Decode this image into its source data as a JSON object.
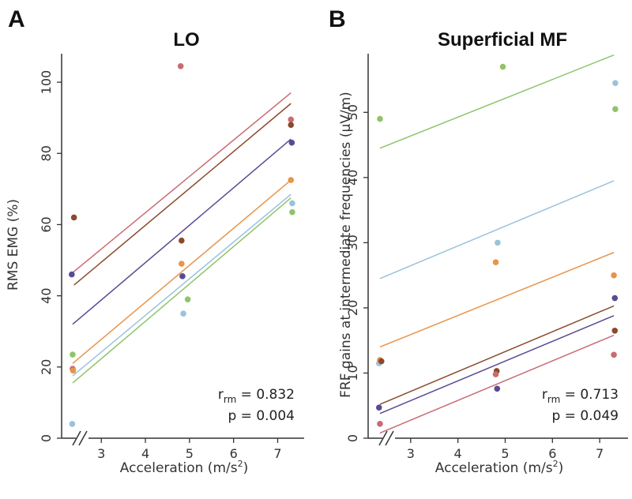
{
  "chart_data": [
    {
      "type": "scatter",
      "panel": "A",
      "title": "LO",
      "xlabel": "Acceleration (m/s²)",
      "ylabel": "RMS EMG (%)",
      "xlim": [
        2.1,
        7.6
      ],
      "ylim": [
        0,
        108
      ],
      "xticks": [
        "3",
        "4",
        "5",
        "6",
        "7"
      ],
      "yticks": [
        "0",
        "20",
        "40",
        "60",
        "80",
        "100"
      ],
      "axis_break": true,
      "stat_r": "r",
      "stat_r_sub": "rm",
      "stat_r_value": " = 0.832",
      "stat_p": "p = 0.004",
      "series": [
        {
          "color": "#c96b73",
          "points": [
            [
              2.35,
              19.5
            ],
            [
              4.8,
              104.5
            ],
            [
              7.3,
              89.5
            ]
          ],
          "fit": [
            [
              2.35,
              46.5
            ],
            [
              7.3,
              97
            ]
          ]
        },
        {
          "color": "#8b4a2b",
          "points": [
            [
              2.38,
              62
            ],
            [
              4.82,
              55.5
            ],
            [
              7.3,
              88
            ]
          ],
          "fit": [
            [
              2.38,
              43
            ],
            [
              7.3,
              94
            ]
          ]
        },
        {
          "color": "#5a4a94",
          "points": [
            [
              2.33,
              46
            ],
            [
              4.84,
              45.5
            ],
            [
              7.32,
              83
            ]
          ],
          "fit": [
            [
              2.35,
              32
            ],
            [
              7.3,
              84
            ]
          ]
        },
        {
          "color": "#e8944a",
          "points": [
            [
              2.36,
              19
            ],
            [
              4.82,
              49
            ],
            [
              7.3,
              72.5
            ]
          ],
          "fit": [
            [
              2.35,
              21
            ],
            [
              7.3,
              72.5
            ]
          ]
        },
        {
          "color": "#9bc2db",
          "points": [
            [
              2.34,
              4
            ],
            [
              4.86,
              35
            ],
            [
              7.33,
              66
            ]
          ],
          "fit": [
            [
              2.35,
              17.5
            ],
            [
              7.3,
              68.5
            ]
          ]
        },
        {
          "color": "#8fc46a",
          "points": [
            [
              2.35,
              23.5
            ],
            [
              4.96,
              39
            ],
            [
              7.33,
              63.5
            ]
          ],
          "fit": [
            [
              2.35,
              15.5
            ],
            [
              7.3,
              67.5
            ]
          ]
        }
      ]
    },
    {
      "type": "scatter",
      "panel": "B",
      "title": "Superficial MF",
      "xlabel": "Acceleration (m/s²)",
      "ylabel": "FRF gains at intermediate frequencies (µV/m)",
      "xlim": [
        2.1,
        7.6
      ],
      "ylim": [
        0,
        59
      ],
      "xticks": [
        "3",
        "4",
        "5",
        "6",
        "7"
      ],
      "yticks": [
        "0",
        "10",
        "20",
        "30",
        "40",
        "50"
      ],
      "axis_break": true,
      "stat_r": "r",
      "stat_r_sub": "rm",
      "stat_r_value": " = 0.713",
      "stat_p": "p = 0.049",
      "series": [
        {
          "color": "#8fc46a",
          "points": [
            [
              2.35,
              49
            ],
            [
              4.95,
              57
            ],
            [
              7.33,
              50.5
            ]
          ],
          "fit": [
            [
              2.35,
              44.5
            ],
            [
              7.3,
              58.8
            ]
          ]
        },
        {
          "color": "#9bc2db",
          "points": [
            [
              2.33,
              11.5
            ],
            [
              4.84,
              30
            ],
            [
              7.33,
              54.5
            ]
          ],
          "fit": [
            [
              2.35,
              24.5
            ],
            [
              7.3,
              39.5
            ]
          ]
        },
        {
          "color": "#e8944a",
          "points": [
            [
              2.35,
              12
            ],
            [
              4.8,
              27
            ],
            [
              7.3,
              25
            ]
          ],
          "fit": [
            [
              2.35,
              14
            ],
            [
              7.3,
              28.5
            ]
          ]
        },
        {
          "color": "#8b4a2b",
          "points": [
            [
              2.38,
              11.8
            ],
            [
              4.82,
              10.3
            ],
            [
              7.32,
              16.5
            ]
          ],
          "fit": [
            [
              2.35,
              5.2
            ],
            [
              7.3,
              20.3
            ]
          ]
        },
        {
          "color": "#5a4a94",
          "points": [
            [
              2.33,
              4.7
            ],
            [
              4.83,
              7.6
            ],
            [
              7.32,
              21.5
            ]
          ],
          "fit": [
            [
              2.35,
              3.8
            ],
            [
              7.3,
              18.8
            ]
          ]
        },
        {
          "color": "#c96b73",
          "points": [
            [
              2.35,
              2.2
            ],
            [
              4.8,
              9.8
            ],
            [
              7.3,
              12.8
            ]
          ],
          "fit": [
            [
              2.35,
              0.8
            ],
            [
              7.3,
              15.8
            ]
          ]
        }
      ]
    }
  ]
}
